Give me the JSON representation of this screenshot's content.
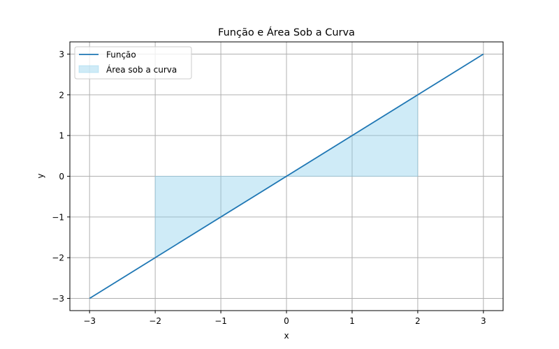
{
  "chart_data": {
    "type": "line",
    "title": "Função e Área Sob a Curva",
    "xlabel": "x",
    "ylabel": "y",
    "xlim": [
      -3.3,
      3.3
    ],
    "ylim": [
      -3.3,
      3.3
    ],
    "xticks": [
      -3,
      -2,
      -1,
      0,
      1,
      2,
      3
    ],
    "yticks": [
      -3,
      -2,
      -1,
      0,
      1,
      2,
      3
    ],
    "xtick_labels": [
      "−3",
      "−2",
      "−1",
      "0",
      "1",
      "2",
      "3"
    ],
    "ytick_labels": [
      "−3",
      "−2",
      "−1",
      "0",
      "1",
      "2",
      "3"
    ],
    "grid": true,
    "legend_position": "upper-left",
    "series": [
      {
        "name": "Função",
        "kind": "line",
        "color": "#1f77b4",
        "x": [
          -3,
          3
        ],
        "y": [
          -3,
          3
        ]
      }
    ],
    "area": {
      "name": "Área sob a curva",
      "color": "#87ceeb",
      "alpha": 0.4,
      "x_from": -2,
      "x_to": 2,
      "baseline": 0
    }
  }
}
